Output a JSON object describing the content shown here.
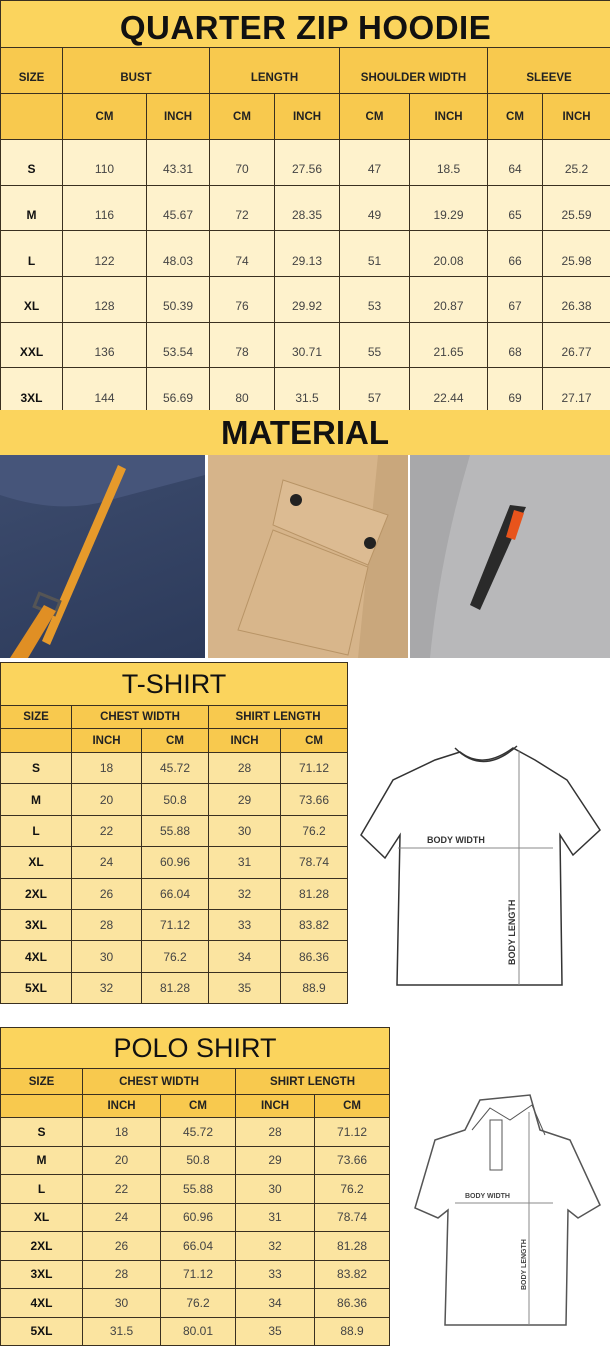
{
  "hoodie": {
    "title": "QUARTER ZIP HOODIE",
    "groups": [
      "SIZE",
      "BUST",
      "LENGTH",
      "SHOULDER WIDTH",
      "SLEEVE"
    ],
    "units": [
      "CM",
      "INCH",
      "CM",
      "INCH",
      "CM",
      "INCH",
      "CM",
      "INCH"
    ],
    "rows": [
      [
        "S",
        "110",
        "43.31",
        "70",
        "27.56",
        "47",
        "18.5",
        "64",
        "25.2"
      ],
      [
        "M",
        "116",
        "45.67",
        "72",
        "28.35",
        "49",
        "19.29",
        "65",
        "25.59"
      ],
      [
        "L",
        "122",
        "48.03",
        "74",
        "29.13",
        "51",
        "20.08",
        "66",
        "25.98"
      ],
      [
        "XL",
        "128",
        "50.39",
        "76",
        "29.92",
        "53",
        "20.87",
        "67",
        "26.38"
      ],
      [
        "XXL",
        "136",
        "53.54",
        "78",
        "30.71",
        "55",
        "21.65",
        "68",
        "26.77"
      ],
      [
        "3XL",
        "144",
        "56.69",
        "80",
        "31.5",
        "57",
        "22.44",
        "69",
        "27.17"
      ]
    ]
  },
  "material": {
    "title": "MATERIAL",
    "photos": [
      "navy-fleece-pocket-with-orange-zipper-pull",
      "khaki-flap-pocket-with-snap-buttons",
      "grey-fleece-sleeve-zipper-pocket"
    ]
  },
  "tshirt": {
    "title": "T-SHIRT",
    "groups": [
      "SIZE",
      "CHEST WIDTH",
      "SHIRT LENGTH"
    ],
    "units": [
      "INCH",
      "CM",
      "INCH",
      "CM"
    ],
    "rows": [
      [
        "S",
        "18",
        "45.72",
        "28",
        "71.12"
      ],
      [
        "M",
        "20",
        "50.8",
        "29",
        "73.66"
      ],
      [
        "L",
        "22",
        "55.88",
        "30",
        "76.2"
      ],
      [
        "XL",
        "24",
        "60.96",
        "31",
        "78.74"
      ],
      [
        "2XL",
        "26",
        "66.04",
        "32",
        "81.28"
      ],
      [
        "3XL",
        "28",
        "71.12",
        "33",
        "83.82"
      ],
      [
        "4XL",
        "30",
        "76.2",
        "34",
        "86.36"
      ],
      [
        "5XL",
        "32",
        "81.28",
        "35",
        "88.9"
      ]
    ],
    "diagram": {
      "width_label": "BODY WIDTH",
      "length_label": "BODY LENGTH"
    }
  },
  "polo": {
    "title": "POLO SHIRT",
    "groups": [
      "SIZE",
      "CHEST WIDTH",
      "SHIRT LENGTH"
    ],
    "units": [
      "INCH",
      "CM",
      "INCH",
      "CM"
    ],
    "rows": [
      [
        "S",
        "18",
        "45.72",
        "28",
        "71.12"
      ],
      [
        "M",
        "20",
        "50.8",
        "29",
        "73.66"
      ],
      [
        "L",
        "22",
        "55.88",
        "30",
        "76.2"
      ],
      [
        "XL",
        "24",
        "60.96",
        "31",
        "78.74"
      ],
      [
        "2XL",
        "26",
        "66.04",
        "32",
        "81.28"
      ],
      [
        "3XL",
        "28",
        "71.12",
        "33",
        "83.82"
      ],
      [
        "4XL",
        "30",
        "76.2",
        "34",
        "86.36"
      ],
      [
        "5XL",
        "31.5",
        "80.01",
        "35",
        "88.9"
      ]
    ],
    "diagram": {
      "width_label": "BODY WIDTH",
      "length_label": "BODY LENGTH"
    }
  },
  "colors": {
    "title_bg": "#fbd45d",
    "header_bg": "#f8c94e",
    "cell_bg": "#fef2cc",
    "tshirt_cell_bg": "#fbe4a0"
  }
}
